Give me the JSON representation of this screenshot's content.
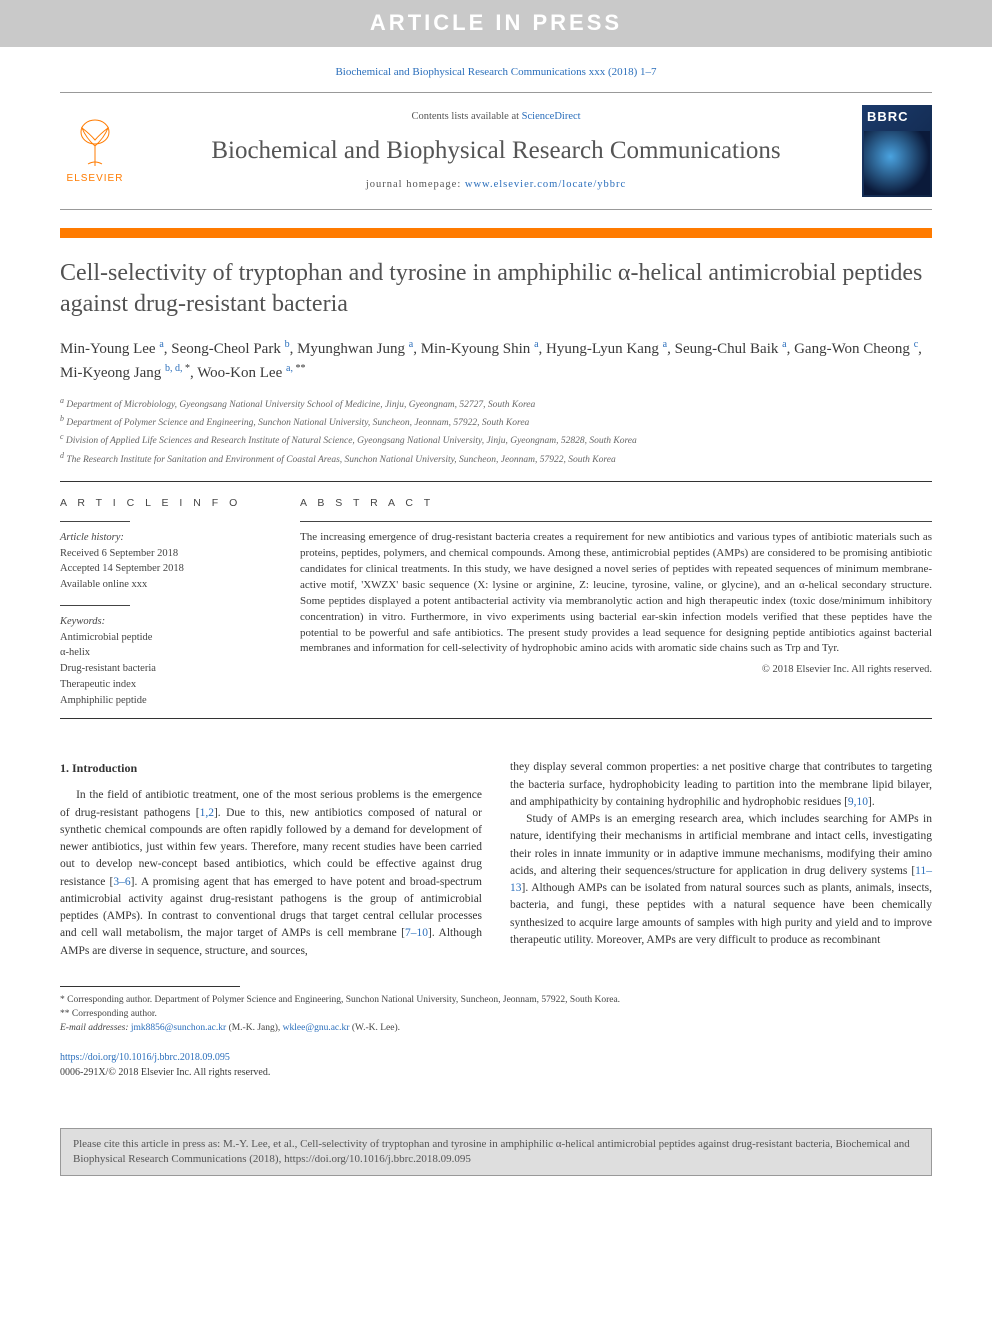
{
  "banner": {
    "text": "ARTICLE IN PRESS"
  },
  "journal_ref": "Biochemical and Biophysical Research Communications xxx (2018) 1–7",
  "header": {
    "publisher_name": "ELSEVIER",
    "publisher_logo_color": "#ff7b00",
    "contents_prefix": "Contents lists available at ",
    "contents_link": "ScienceDirect",
    "journal_title": "Biochemical and Biophysical Research Communications",
    "homepage_prefix": "journal homepage: ",
    "homepage_url": "www.elsevier.com/locate/ybbrc",
    "cover_label": "BBRC"
  },
  "orange_bar_color": "#ff7b00",
  "article": {
    "title": "Cell-selectivity of tryptophan and tyrosine in amphiphilic α-helical antimicrobial peptides against drug-resistant bacteria",
    "authors_html": "Min-Young Lee <sup>a</sup>, Seong-Cheol Park <sup>b</sup>, Myunghwan Jung <sup>a</sup>, Min-Kyoung Shin <sup>a</sup>, Hyung-Lyun Kang <sup>a</sup>, Seung-Chul Baik <sup>a</sup>, Gang-Won Cheong <sup>c</sup>, Mi-Kyeong Jang <sup>b, d, <span class='ast'>*</span></sup>, Woo-Kon Lee <sup>a, <span class='ast'>**</span></sup>",
    "affiliations": [
      "a Department of Microbiology, Gyeongsang National University School of Medicine, Jinju, Gyeongnam, 52727, South Korea",
      "b Department of Polymer Science and Engineering, Sunchon National University, Suncheon, Jeonnam, 57922, South Korea",
      "c Division of Applied Life Sciences and Research Institute of Natural Science, Gyeongsang National University, Jinju, Gyeongnam, 52828, South Korea",
      "d The Research Institute for Sanitation and Environment of Coastal Areas, Sunchon National University, Suncheon, Jeonnam, 57922, South Korea"
    ]
  },
  "article_info": {
    "heading": "A R T I C L E  I N F O",
    "history_label": "Article history:",
    "history": [
      "Received 6 September 2018",
      "Accepted 14 September 2018",
      "Available online xxx"
    ],
    "keywords_label": "Keywords:",
    "keywords": [
      "Antimicrobial peptide",
      "α-helix",
      "Drug-resistant bacteria",
      "Therapeutic index",
      "Amphiphilic peptide"
    ]
  },
  "abstract": {
    "heading": "A B S T R A C T",
    "text": "The increasing emergence of drug-resistant bacteria creates a requirement for new antibiotics and various types of antibiotic materials such as proteins, peptides, polymers, and chemical compounds. Among these, antimicrobial peptides (AMPs) are considered to be promising antibiotic candidates for clinical treatments. In this study, we have designed a novel series of peptides with repeated sequences of minimum membrane-active motif, 'XWZX' basic sequence (X: lysine or arginine, Z: leucine, tyrosine, valine, or glycine), and an α-helical secondary structure. Some peptides displayed a potent antibacterial activity via membranolytic action and high therapeutic index (toxic dose/minimum inhibitory concentration) in vitro. Furthermore, in vivo experiments using bacterial ear-skin infection models verified that these peptides have the potential to be powerful and safe antibiotics. The present study provides a lead sequence for designing peptide antibiotics against bacterial membranes and information for cell-selectivity of hydrophobic amino acids with aromatic side chains such as Trp and Tyr.",
    "copyright": "© 2018 Elsevier Inc. All rights reserved."
  },
  "body": {
    "section_heading": "1. Introduction",
    "p1": "In the field of antibiotic treatment, one of the most serious problems is the emergence of drug-resistant pathogens [1,2]. Due to this, new antibiotics composed of natural or synthetic chemical compounds are often rapidly followed by a demand for development of newer antibiotics, just within few years. Therefore, many recent studies have been carried out to develop new-concept based antibiotics, which could be effective against drug resistance [3–6]. A promising agent that has emerged to have potent and broad-spectrum antimicrobial activity against drug-resistant pathogens is the group of antimicrobial peptides (AMPs). In contrast to conventional drugs that target central cellular processes and cell wall metabolism, the major target of AMPs is cell membrane [7–10]. Although AMPs are diverse in sequence, structure, and sources,",
    "p2": "they display several common properties: a net positive charge that contributes to targeting the bacteria surface, hydrophobicity leading to partition into the membrane lipid bilayer, and amphipathicity by containing hydrophilic and hydrophobic residues [9,10].",
    "p3": "Study of AMPs is an emerging research area, which includes searching for AMPs in nature, identifying their mechanisms in artificial membrane and intact cells, investigating their roles in innate immunity or in adaptive immune mechanisms, modifying their amino acids, and altering their sequences/structure for application in drug delivery systems [11–13]. Although AMPs can be isolated from natural sources such as plants, animals, insects, bacteria, and fungi, these peptides with a natural sequence have been chemically synthesized to acquire large amounts of samples with high purity and yield and to improve therapeutic utility. Moreover, AMPs are very difficult to produce as recombinant"
  },
  "footer": {
    "corr1": "* Corresponding author. Department of Polymer Science and Engineering, Sunchon National University, Suncheon, Jeonnam, 57922, South Korea.",
    "corr2": "** Corresponding author.",
    "email_label": "E-mail addresses: ",
    "email1": "jmk8856@sunchon.ac.kr",
    "email1_name": " (M.-K. Jang), ",
    "email2": "wklee@gnu.ac.kr",
    "email2_name": " (W.-K. Lee).",
    "doi": "https://doi.org/10.1016/j.bbrc.2018.09.095",
    "issn_line": "0006-291X/© 2018 Elsevier Inc. All rights reserved."
  },
  "citation_box": "Please cite this article in press as: M.-Y. Lee, et al., Cell-selectivity of tryptophan and tyrosine in amphiphilic α-helical antimicrobial peptides against drug-resistant bacteria, Biochemical and Biophysical Research Communications (2018), https://doi.org/10.1016/j.bbrc.2018.09.095",
  "colors": {
    "banner_bg": "#c9c9c9",
    "link": "#2a6ebb",
    "orange": "#ff7b00",
    "text": "#3a3a3a",
    "cover_gradient_from": "#1b3a6b",
    "cover_gradient_to": "#0f2445"
  },
  "typography": {
    "base_font": "Georgia, Times New Roman, serif",
    "title_fontsize": 24,
    "journal_title_fontsize": 25,
    "body_fontsize": 11.5,
    "abstract_fontsize": 11,
    "footnote_fontsize": 9.5
  }
}
